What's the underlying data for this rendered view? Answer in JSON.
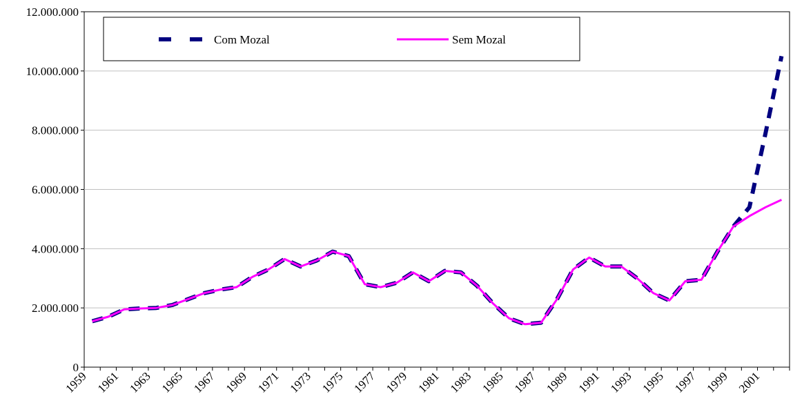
{
  "chart_data": {
    "type": "line",
    "categories": [
      "1959",
      null,
      "1961",
      null,
      "1963",
      null,
      "1965",
      null,
      "1967",
      null,
      "1969",
      null,
      "1971",
      null,
      "1973",
      null,
      "1975",
      null,
      "1977",
      null,
      "1979",
      null,
      "1981",
      null,
      "1983",
      null,
      "1985",
      null,
      "1987",
      null,
      "1989",
      null,
      "1991",
      null,
      "1993",
      null,
      "1995",
      null,
      "1997",
      null,
      "1999",
      null,
      "2001",
      null
    ],
    "series": [
      {
        "name": "Com Mozal",
        "color": "#000080",
        "dashed": true,
        "values": [
          1550000,
          1700000,
          1950000,
          1980000,
          2000000,
          2100000,
          2300000,
          2500000,
          2620000,
          2700000,
          3050000,
          3300000,
          3650000,
          3400000,
          3600000,
          3900000,
          3750000,
          2800000,
          2700000,
          2850000,
          3200000,
          2900000,
          3250000,
          3200000,
          2750000,
          2150000,
          1650000,
          1450000,
          1500000,
          2300000,
          3300000,
          3700000,
          3400000,
          3400000,
          3000000,
          2500000,
          2250000,
          2900000,
          2950000,
          3900000,
          4750000,
          5400000,
          7900000,
          10500000
        ]
      },
      {
        "name": "Sem Mozal",
        "color": "#ff00ff",
        "dashed": false,
        "values": [
          1550000,
          1700000,
          1950000,
          1980000,
          2000000,
          2100000,
          2300000,
          2500000,
          2620000,
          2700000,
          3050000,
          3300000,
          3650000,
          3400000,
          3600000,
          3900000,
          3750000,
          2800000,
          2700000,
          2850000,
          3200000,
          2900000,
          3250000,
          3200000,
          2750000,
          2150000,
          1650000,
          1450000,
          1500000,
          2300000,
          3300000,
          3700000,
          3400000,
          3400000,
          3000000,
          2500000,
          2250000,
          2900000,
          2950000,
          3900000,
          4750000,
          5100000,
          5400000,
          5650000
        ]
      }
    ],
    "ylim": [
      0,
      12000000
    ],
    "yticks": [
      0,
      {
        "value": 2000000,
        "label": "2.000.000"
      },
      {
        "value": 4000000,
        "label": "4.000.000"
      },
      {
        "value": 6000000,
        "label": "6.000.000"
      },
      {
        "value": 8000000,
        "label": "8.000.000"
      },
      {
        "value": 10000000,
        "label": "10.000.000"
      },
      {
        "value": 12000000,
        "label": "12.000.000"
      }
    ],
    "grid": true
  }
}
